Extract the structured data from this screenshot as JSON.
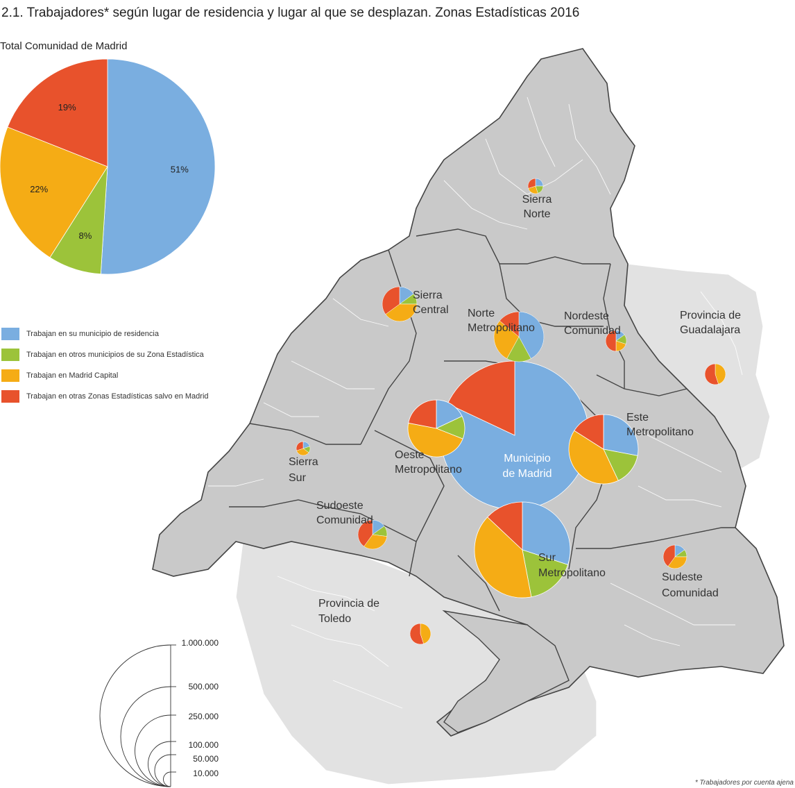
{
  "title": "2.1. Trabajadores* según lugar de residencia y lugar al que se desplazan. Zonas Estadísticas 2016",
  "footnote": "* Trabajadores por cuenta ajena",
  "colors": {
    "blue": "#7aaee0",
    "green": "#9cc33a",
    "yellow": "#f5ac15",
    "red": "#e8522c",
    "map_fill": "#c9c9c9",
    "map_border": "#444444",
    "outside_fill": "#e2e2e2"
  },
  "legend": [
    {
      "label": "Trabajan en su municipio de residencia",
      "color": "#7aaee0"
    },
    {
      "label": "Trabajan en otros municipios de su Zona Estadística",
      "color": "#9cc33a"
    },
    {
      "label": "Trabajan en Madrid Capital",
      "color": "#f5ac15"
    },
    {
      "label": "Trabajan en otras Zonas Estadísticas salvo en Madrid",
      "color": "#e8522c"
    }
  ],
  "chart_data": {
    "type": "pie",
    "title": "Total Comunidad de Madrid",
    "slices": [
      {
        "label": "51%",
        "value": 51,
        "color": "#7aaee0"
      },
      {
        "label": "8%",
        "value": 8,
        "color": "#9cc33a"
      },
      {
        "label": "22%",
        "value": 22,
        "color": "#f5ac15"
      },
      {
        "label": "19%",
        "value": 19,
        "color": "#e8522c"
      }
    ]
  },
  "zones": [
    {
      "name": [
        "Sierra",
        "Norte"
      ],
      "shares": [
        25,
        20,
        25,
        30
      ]
    },
    {
      "name": [
        "Sierra",
        "Central"
      ],
      "shares": [
        15,
        10,
        40,
        35
      ]
    },
    {
      "name": [
        "Norte",
        "Metropolitano"
      ],
      "shares": [
        42,
        16,
        28,
        14
      ]
    },
    {
      "name": [
        "Nordeste",
        "Comunidad"
      ],
      "shares": [
        15,
        15,
        20,
        50
      ]
    },
    {
      "name": [
        "Provincia de",
        "Guadalajara"
      ],
      "shares": [
        0,
        0,
        45,
        55
      ]
    },
    {
      "name": [
        "Oeste",
        "Metropolitano"
      ],
      "shares": [
        18,
        13,
        47,
        22
      ]
    },
    {
      "name": [
        "Municipio",
        "de Madrid"
      ],
      "shares": [
        82,
        0,
        0,
        18
      ]
    },
    {
      "name": [
        "Este",
        "Metropolitano"
      ],
      "shares": [
        28,
        15,
        41,
        16
      ]
    },
    {
      "name": [
        "Sierra",
        "Sur"
      ],
      "shares": [
        20,
        15,
        35,
        30
      ]
    },
    {
      "name": [
        "Sudoeste",
        "Comunidad"
      ],
      "shares": [
        15,
        12,
        33,
        40
      ]
    },
    {
      "name": [
        "Sur",
        "Metropolitano"
      ],
      "shares": [
        30,
        17,
        40,
        13
      ]
    },
    {
      "name": [
        "Sudeste",
        "Comunidad"
      ],
      "shares": [
        15,
        10,
        35,
        40
      ]
    },
    {
      "name": [
        "Provincia de",
        "Toledo"
      ],
      "shares": [
        0,
        0,
        45,
        55
      ]
    }
  ],
  "scale": {
    "labels": [
      "1.000.000",
      "500.000",
      "250.000",
      "100.000",
      "50.000",
      "10.000"
    ]
  }
}
